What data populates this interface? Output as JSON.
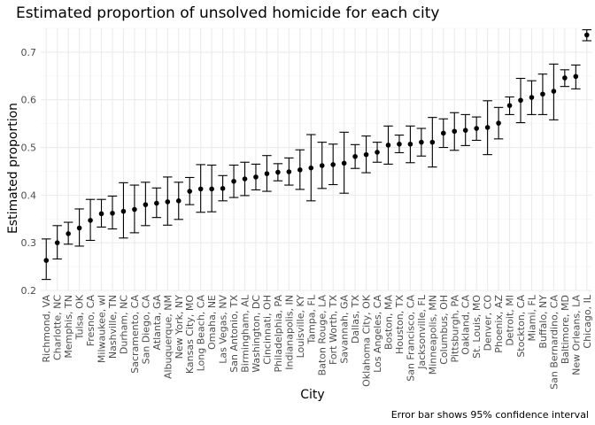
{
  "chart_data": {
    "type": "scatter",
    "title": "Estimated proportion of unsolved homicide for each city",
    "xlabel": "City",
    "ylabel": "Estimated proportion",
    "caption": "Error bar shows 95% confidence interval",
    "ylim": [
      0.2,
      0.75
    ],
    "yticks": [
      "0.2",
      "0.3",
      "0.4",
      "0.5",
      "0.6",
      "0.7"
    ],
    "grid": true,
    "legend": "none",
    "series": [
      {
        "points": [
          {
            "city": "Richmond, VA",
            "estimate": 0.263,
            "low": 0.223,
            "high": 0.308
          },
          {
            "city": "Charlotte, NC",
            "estimate": 0.3,
            "low": 0.266,
            "high": 0.336
          },
          {
            "city": "Memphis, TN",
            "estimate": 0.319,
            "low": 0.297,
            "high": 0.343
          },
          {
            "city": "Tulsa, OK",
            "estimate": 0.331,
            "low": 0.293,
            "high": 0.371
          },
          {
            "city": "Fresno, CA",
            "estimate": 0.347,
            "low": 0.305,
            "high": 0.391
          },
          {
            "city": "Milwaukee, wI",
            "estimate": 0.361,
            "low": 0.333,
            "high": 0.391
          },
          {
            "city": "Nashville, TN",
            "estimate": 0.362,
            "low": 0.329,
            "high": 0.398
          },
          {
            "city": "Durham, NC",
            "estimate": 0.366,
            "low": 0.31,
            "high": 0.426
          },
          {
            "city": "Sacramento, CA",
            "estimate": 0.37,
            "low": 0.321,
            "high": 0.421
          },
          {
            "city": "San Diego, CA",
            "estimate": 0.38,
            "low": 0.336,
            "high": 0.427
          },
          {
            "city": "Atlanta, GA",
            "estimate": 0.383,
            "low": 0.353,
            "high": 0.415
          },
          {
            "city": "Albuquerque, NM",
            "estimate": 0.386,
            "low": 0.337,
            "high": 0.438
          },
          {
            "city": "New York, NY",
            "estimate": 0.388,
            "low": 0.349,
            "high": 0.427
          },
          {
            "city": "Kansas City, MO",
            "estimate": 0.408,
            "low": 0.38,
            "high": 0.437
          },
          {
            "city": "Long Beach, CA",
            "estimate": 0.413,
            "low": 0.364,
            "high": 0.464
          },
          {
            "city": "Omaha, NE",
            "estimate": 0.413,
            "low": 0.365,
            "high": 0.463
          },
          {
            "city": "Las Vegas, NV",
            "estimate": 0.414,
            "low": 0.388,
            "high": 0.441
          },
          {
            "city": "San Antonio, TX",
            "estimate": 0.429,
            "low": 0.395,
            "high": 0.463
          },
          {
            "city": "Birmingham, AL",
            "estimate": 0.434,
            "low": 0.399,
            "high": 0.469
          },
          {
            "city": "Washington, DC",
            "estimate": 0.438,
            "low": 0.411,
            "high": 0.465
          },
          {
            "city": "Cincinnati, OH",
            "estimate": 0.445,
            "low": 0.408,
            "high": 0.483
          },
          {
            "city": "Philadelphia, PA",
            "estimate": 0.448,
            "low": 0.43,
            "high": 0.466
          },
          {
            "city": "Indianapolis, IN",
            "estimate": 0.449,
            "low": 0.421,
            "high": 0.478
          },
          {
            "city": "Louisville, KY",
            "estimate": 0.453,
            "low": 0.412,
            "high": 0.495
          },
          {
            "city": "Tampa, FL",
            "estimate": 0.457,
            "low": 0.388,
            "high": 0.527
          },
          {
            "city": "Baton Rouge, LA",
            "estimate": 0.462,
            "low": 0.414,
            "high": 0.511
          },
          {
            "city": "Fort Worth, TX",
            "estimate": 0.464,
            "low": 0.422,
            "high": 0.507
          },
          {
            "city": "Savannah, GA",
            "estimate": 0.467,
            "low": 0.404,
            "high": 0.532
          },
          {
            "city": "Dallas, TX",
            "estimate": 0.481,
            "low": 0.456,
            "high": 0.506
          },
          {
            "city": "Oklahoma City, OK",
            "estimate": 0.485,
            "low": 0.447,
            "high": 0.524
          },
          {
            "city": "Los Angeles, CA",
            "estimate": 0.49,
            "low": 0.469,
            "high": 0.511
          },
          {
            "city": "Boston, MA",
            "estimate": 0.505,
            "low": 0.465,
            "high": 0.545
          },
          {
            "city": "Houston, TX",
            "estimate": 0.507,
            "low": 0.489,
            "high": 0.526
          },
          {
            "city": "San Francisco, CA",
            "estimate": 0.507,
            "low": 0.468,
            "high": 0.545
          },
          {
            "city": "Jacksonville, FL",
            "estimate": 0.511,
            "low": 0.482,
            "high": 0.54
          },
          {
            "city": "Minneapolis, MN",
            "estimate": 0.511,
            "low": 0.459,
            "high": 0.563
          },
          {
            "city": "Columbus, OH",
            "estimate": 0.53,
            "low": 0.5,
            "high": 0.56
          },
          {
            "city": "Pittsburgh, PA",
            "estimate": 0.534,
            "low": 0.494,
            "high": 0.573
          },
          {
            "city": "Oakland, CA",
            "estimate": 0.536,
            "low": 0.504,
            "high": 0.569
          },
          {
            "city": "St. Louis, MO",
            "estimate": 0.54,
            "low": 0.515,
            "high": 0.564
          },
          {
            "city": "Denver, CO",
            "estimate": 0.542,
            "low": 0.485,
            "high": 0.598
          },
          {
            "city": "Phoenix, AZ",
            "estimate": 0.551,
            "low": 0.518,
            "high": 0.584
          },
          {
            "city": "Detroit, MI",
            "estimate": 0.588,
            "low": 0.569,
            "high": 0.606
          },
          {
            "city": "Stockton, CA",
            "estimate": 0.599,
            "low": 0.552,
            "high": 0.645
          },
          {
            "city": "Miami, FL",
            "estimate": 0.605,
            "low": 0.569,
            "high": 0.64
          },
          {
            "city": "Buffalo, NY",
            "estimate": 0.612,
            "low": 0.569,
            "high": 0.654
          },
          {
            "city": "San Bernardino, CA",
            "estimate": 0.618,
            "low": 0.558,
            "high": 0.675
          },
          {
            "city": "Baltimore, MD",
            "estimate": 0.646,
            "low": 0.628,
            "high": 0.663
          },
          {
            "city": "New Orleans, LA",
            "estimate": 0.649,
            "low": 0.623,
            "high": 0.673
          },
          {
            "city": "Chicago, IL",
            "estimate": 0.736,
            "low": 0.724,
            "high": 0.747
          }
        ]
      }
    ]
  }
}
